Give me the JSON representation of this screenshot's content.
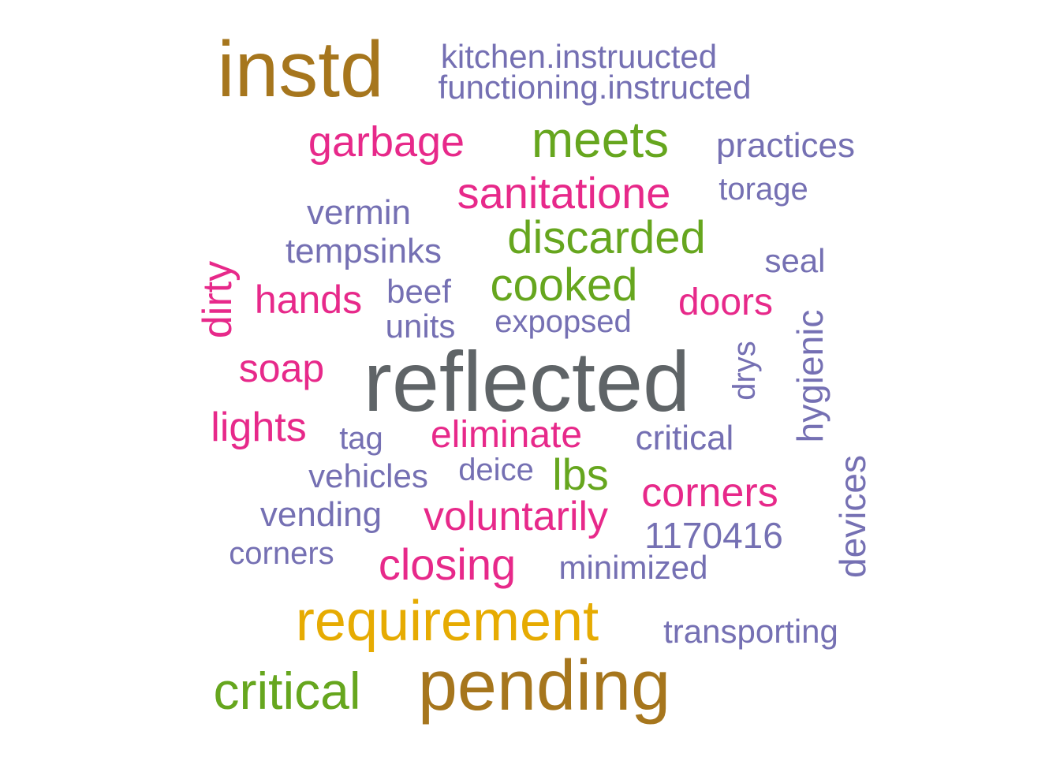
{
  "palette": {
    "gray": "#5f6467",
    "brown": "#a6761d",
    "green": "#66a61e",
    "pink": "#e7298a",
    "purple": "#7570b3",
    "gold": "#e6ab02"
  },
  "words": [
    {
      "text": "reflected",
      "color": "gray",
      "rotated": false
    },
    {
      "text": "instd",
      "color": "brown",
      "rotated": false
    },
    {
      "text": "pending",
      "color": "brown",
      "rotated": false
    },
    {
      "text": "requirement",
      "color": "gold",
      "rotated": false
    },
    {
      "text": "critical",
      "color": "green",
      "rotated": false
    },
    {
      "text": "meets",
      "color": "green",
      "rotated": false
    },
    {
      "text": "discarded",
      "color": "green",
      "rotated": false
    },
    {
      "text": "cooked",
      "color": "green",
      "rotated": false
    },
    {
      "text": "lbs",
      "color": "green",
      "rotated": false
    },
    {
      "text": "sanitatione",
      "color": "pink",
      "rotated": false
    },
    {
      "text": "garbage",
      "color": "pink",
      "rotated": false
    },
    {
      "text": "hands",
      "color": "pink",
      "rotated": false
    },
    {
      "text": "doors",
      "color": "pink",
      "rotated": false
    },
    {
      "text": "soap",
      "color": "pink",
      "rotated": false
    },
    {
      "text": "lights",
      "color": "pink",
      "rotated": false
    },
    {
      "text": "eliminate",
      "color": "pink",
      "rotated": false
    },
    {
      "text": "corners",
      "color": "pink",
      "rotated": false
    },
    {
      "text": "voluntarily",
      "color": "pink",
      "rotated": false
    },
    {
      "text": "closing",
      "color": "pink",
      "rotated": false
    },
    {
      "text": "dirty",
      "color": "pink",
      "rotated": true
    },
    {
      "text": "kitchen.instruucted",
      "color": "purple",
      "rotated": false
    },
    {
      "text": "functioning.instructed",
      "color": "purple",
      "rotated": false
    },
    {
      "text": "practices",
      "color": "purple",
      "rotated": false
    },
    {
      "text": "torage",
      "color": "purple",
      "rotated": false
    },
    {
      "text": "vermin",
      "color": "purple",
      "rotated": false
    },
    {
      "text": "tempsinks",
      "color": "purple",
      "rotated": false
    },
    {
      "text": "seal",
      "color": "purple",
      "rotated": false
    },
    {
      "text": "beef",
      "color": "purple",
      "rotated": false
    },
    {
      "text": "units",
      "color": "purple",
      "rotated": false
    },
    {
      "text": "expopsed",
      "color": "purple",
      "rotated": false
    },
    {
      "text": "tag",
      "color": "purple",
      "rotated": false
    },
    {
      "text": "critical",
      "color": "purple",
      "rotated": false
    },
    {
      "text": "vehicles",
      "color": "purple",
      "rotated": false
    },
    {
      "text": "deice",
      "color": "purple",
      "rotated": false
    },
    {
      "text": "vending",
      "color": "purple",
      "rotated": false
    },
    {
      "text": "1170416",
      "color": "purple",
      "rotated": false
    },
    {
      "text": "corners",
      "color": "purple",
      "rotated": false
    },
    {
      "text": "minimized",
      "color": "purple",
      "rotated": false
    },
    {
      "text": "transporting",
      "color": "purple",
      "rotated": false
    },
    {
      "text": "drys",
      "color": "purple",
      "rotated": true
    },
    {
      "text": "hygienic",
      "color": "purple",
      "rotated": true
    },
    {
      "text": "devices",
      "color": "purple",
      "rotated": true
    }
  ]
}
